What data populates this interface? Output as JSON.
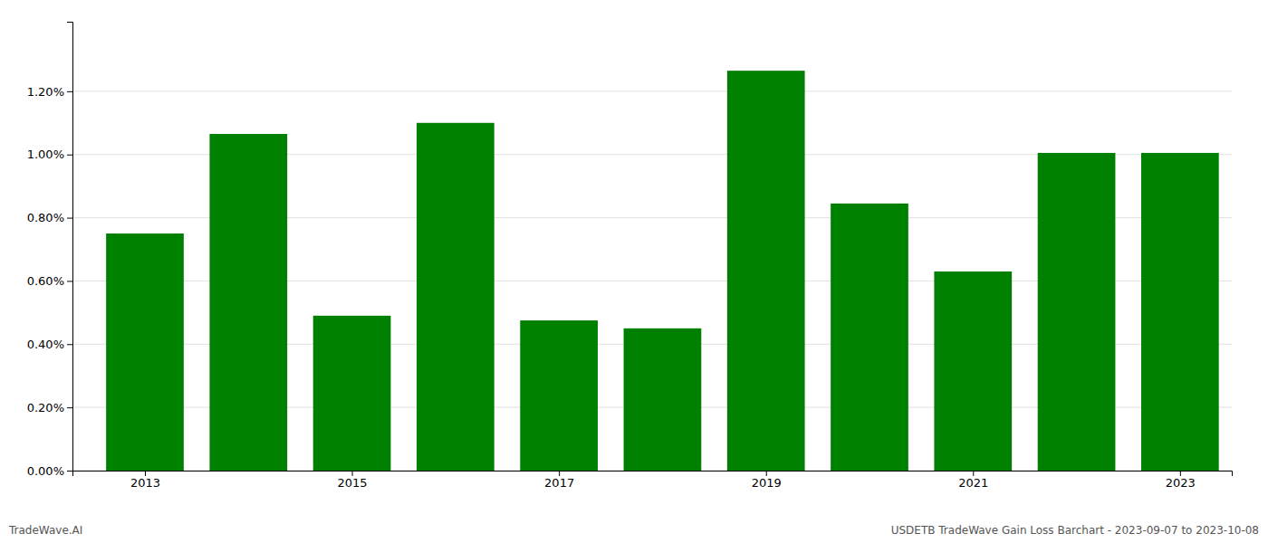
{
  "chart_data": {
    "type": "bar",
    "x": [
      2013,
      2014,
      2015,
      2016,
      2017,
      2018,
      2019,
      2020,
      2021,
      2022,
      2023
    ],
    "values": [
      0.0075,
      0.01065,
      0.0049,
      0.011,
      0.00475,
      0.0045,
      0.01265,
      0.00845,
      0.0063,
      0.01005,
      0.01005
    ],
    "color": "#008000",
    "xlim": [
      2012.3,
      2023.5
    ],
    "xticks": [
      2013,
      2015,
      2017,
      2019,
      2021,
      2023
    ],
    "ylim": [
      0,
      0.0142
    ],
    "yticks": [
      {
        "value": 0.0,
        "label": "0.00%"
      },
      {
        "value": 0.002,
        "label": "0.20%"
      },
      {
        "value": 0.004,
        "label": "0.40%"
      },
      {
        "value": 0.006,
        "label": "0.60%"
      },
      {
        "value": 0.008,
        "label": "0.80%"
      },
      {
        "value": 0.01,
        "label": "1.00%"
      },
      {
        "value": 0.012,
        "label": "1.20%"
      }
    ],
    "grid": true,
    "annotations": [
      "TradeWave.AI",
      "USDETB TradeWave Gain Loss Barchart - 2023-09-07 to 2023-10-08"
    ]
  }
}
